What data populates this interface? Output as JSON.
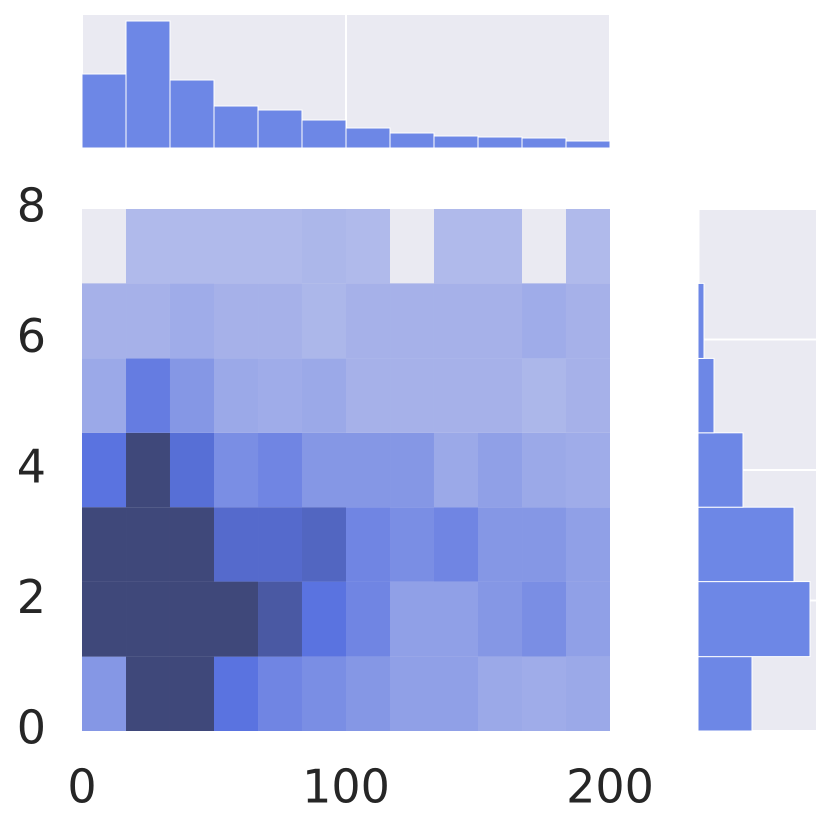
{
  "chart_data": [
    {
      "type": "heatmap",
      "xbins": [
        0,
        16.67,
        33.33,
        50,
        66.67,
        83.33,
        100,
        116.67,
        133.33,
        150,
        166.67,
        183.33,
        200
      ],
      "ybins": [
        0,
        1.14,
        2.29,
        3.43,
        4.57,
        5.71,
        6.86,
        8
      ],
      "values": [
        [
          3,
          10,
          10,
          5,
          4,
          3.5,
          3,
          2.5,
          2.5,
          2,
          1.8,
          2
        ],
        [
          10,
          10,
          10,
          10,
          8,
          5,
          4,
          2.5,
          2.5,
          3,
          3.5,
          2.5
        ],
        [
          10,
          10,
          10,
          6,
          6,
          6.5,
          4,
          3.5,
          4,
          3,
          3,
          2.5
        ],
        [
          5,
          10,
          5.5,
          3.5,
          4,
          3,
          3,
          3,
          2,
          2.5,
          2,
          1.8
        ],
        [
          2,
          4.5,
          3,
          2,
          1.8,
          2,
          1.5,
          1.5,
          1.5,
          1.5,
          1.2,
          1.5
        ],
        [
          1.5,
          1.5,
          1.8,
          1.5,
          1.5,
          1.2,
          1.5,
          1.5,
          1.5,
          1.5,
          1.8,
          1.5
        ],
        [
          null,
          1,
          1,
          1,
          1,
          1.2,
          1,
          null,
          1,
          1,
          null,
          1
        ]
      ],
      "xlim": [
        0,
        200
      ],
      "ylim": [
        0,
        8
      ],
      "xticks": [
        0,
        100,
        200
      ],
      "yticks": [
        0,
        2,
        4,
        6,
        8
      ],
      "color": "#5a73e0"
    },
    {
      "type": "histogram",
      "orientation": "vertical",
      "bins": [
        0,
        16.67,
        33.33,
        50,
        66.67,
        83.33,
        100,
        116.67,
        133.33,
        150,
        166.67,
        183.33,
        200
      ],
      "counts": [
        74,
        127,
        68,
        42,
        38,
        28,
        20,
        15,
        12,
        11,
        10,
        7
      ],
      "xlim": [
        0,
        200
      ],
      "ylim": [
        0,
        133
      ],
      "xticks": [
        0,
        100,
        200
      ],
      "color": "#6d87e6",
      "grid": true
    },
    {
      "type": "histogram",
      "orientation": "horizontal",
      "bins": [
        0,
        1.14,
        2.29,
        3.43,
        4.57,
        5.71,
        6.86,
        8
      ],
      "counts": [
        54,
        112,
        96,
        45,
        16,
        6,
        1
      ],
      "ylim": [
        0,
        8
      ],
      "xlim": [
        0,
        118
      ],
      "yticks": [
        0,
        2,
        4,
        6,
        8
      ],
      "color": "#6d87e6",
      "grid": true
    }
  ]
}
